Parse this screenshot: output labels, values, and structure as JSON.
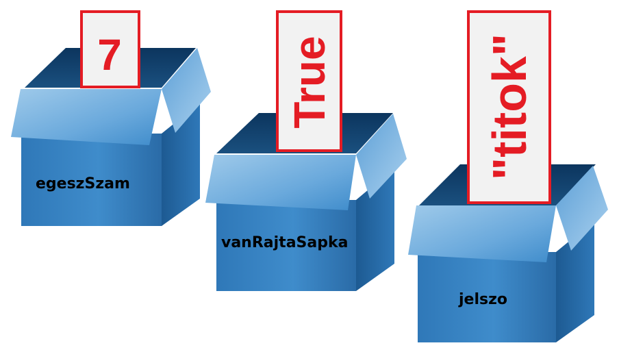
{
  "colors": {
    "box_front_dark": "#1f5d94",
    "box_front_light": "#3f8ccb",
    "box_inner": "#0f3f6e",
    "box_flap": "#5ea3d8",
    "card_border": "#e41c24",
    "card_fill": "#f2f2f2",
    "value_text": "#e41c24",
    "label_text": "#000000"
  },
  "boxes": [
    {
      "label": "egeszSzam",
      "value": "7"
    },
    {
      "label": "vanRajtaSapka",
      "value": "True"
    },
    {
      "label": "jelszo",
      "value": "\"titok\""
    }
  ]
}
